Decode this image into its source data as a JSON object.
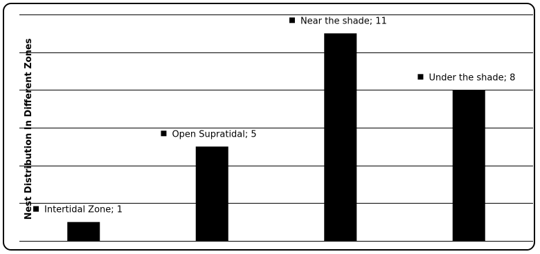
{
  "chart_data": {
    "type": "bar",
    "title": "",
    "xlabel": "",
    "ylabel": "Nest Distribution In Different Zones",
    "ylim": [
      0,
      12
    ],
    "grid": true,
    "categories": [
      "Intertidal Zone",
      "Open Supratidal",
      "Near the shade",
      "Under the shade"
    ],
    "values": [
      1,
      5,
      11,
      8
    ],
    "data_labels": [
      "Intertidal Zone; 1",
      "Open Supratidal; 5",
      "Near the shade; 11",
      "Under the shade; 8"
    ],
    "bar_color": "#000000",
    "gridline_color": "#000000"
  }
}
